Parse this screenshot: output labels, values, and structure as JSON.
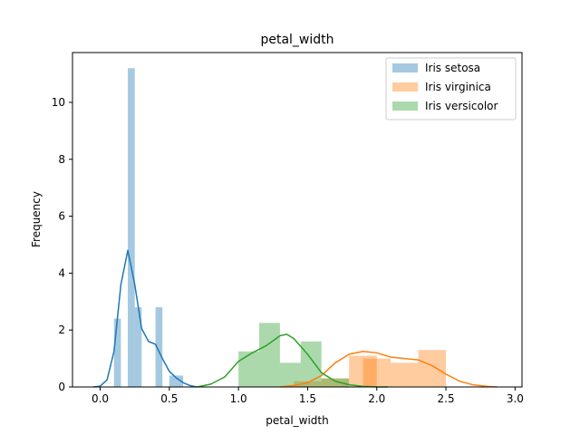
{
  "chart_data": {
    "type": "histogram",
    "title": "petal_width",
    "xlabel": "petal_width",
    "ylabel": "Frequency",
    "xlim": [
      -0.2,
      3.05
    ],
    "ylim": [
      0,
      11.75
    ],
    "xticks": [
      0.0,
      0.5,
      1.0,
      1.5,
      2.0,
      2.5,
      3.0
    ],
    "xtick_labels": [
      "0.0",
      "0.5",
      "1.0",
      "1.5",
      "2.0",
      "2.5",
      "3.0"
    ],
    "yticks": [
      0,
      2,
      4,
      6,
      8,
      10
    ],
    "ytick_labels": [
      "0",
      "2",
      "4",
      "6",
      "8",
      "10"
    ],
    "legend_position": "top-right",
    "series": [
      {
        "name": "Iris setosa",
        "color": "#1f77b4",
        "bar_alpha": 0.4,
        "bars": [
          {
            "x0": 0.1,
            "x1": 0.15,
            "height": 2.4
          },
          {
            "x0": 0.2,
            "x1": 0.25,
            "height": 11.2
          },
          {
            "x0": 0.25,
            "x1": 0.3,
            "height": 2.8
          },
          {
            "x0": 0.4,
            "x1": 0.45,
            "height": 2.8
          },
          {
            "x0": 0.5,
            "x1": 0.6,
            "height": 0.4
          }
        ],
        "kde": [
          [
            -0.05,
            0.0
          ],
          [
            0.0,
            0.03
          ],
          [
            0.05,
            0.25
          ],
          [
            0.1,
            1.25
          ],
          [
            0.15,
            3.6
          ],
          [
            0.2,
            4.8
          ],
          [
            0.25,
            3.6
          ],
          [
            0.3,
            2.05
          ],
          [
            0.35,
            1.6
          ],
          [
            0.4,
            1.5
          ],
          [
            0.45,
            1.0
          ],
          [
            0.5,
            0.55
          ],
          [
            0.55,
            0.32
          ],
          [
            0.6,
            0.15
          ],
          [
            0.65,
            0.05
          ],
          [
            0.7,
            0.0
          ]
        ]
      },
      {
        "name": "Iris virginica",
        "color": "#ff7f0e",
        "bar_alpha": 0.4,
        "bars": [
          {
            "x0": 1.4,
            "x1": 1.6,
            "height": 0.2
          },
          {
            "x0": 1.6,
            "x1": 1.8,
            "height": 0.3
          },
          {
            "x0": 1.8,
            "x1": 2.0,
            "height": 1.1
          },
          {
            "x0": 1.9,
            "x1": 2.1,
            "height": 1.0
          },
          {
            "x0": 2.1,
            "x1": 2.3,
            "height": 0.85
          },
          {
            "x0": 2.3,
            "x1": 2.5,
            "height": 1.3
          }
        ],
        "kde": [
          [
            1.3,
            0.0
          ],
          [
            1.4,
            0.05
          ],
          [
            1.5,
            0.15
          ],
          [
            1.6,
            0.4
          ],
          [
            1.7,
            0.85
          ],
          [
            1.8,
            1.15
          ],
          [
            1.9,
            1.25
          ],
          [
            2.0,
            1.2
          ],
          [
            2.1,
            1.05
          ],
          [
            2.2,
            1.0
          ],
          [
            2.3,
            0.95
          ],
          [
            2.4,
            0.75
          ],
          [
            2.5,
            0.45
          ],
          [
            2.6,
            0.2
          ],
          [
            2.7,
            0.07
          ],
          [
            2.8,
            0.02
          ],
          [
            2.87,
            0.0
          ]
        ]
      },
      {
        "name": "Iris versicolor",
        "color": "#2ca02c",
        "bar_alpha": 0.4,
        "bars": [
          {
            "x0": 1.0,
            "x1": 1.15,
            "height": 1.25
          },
          {
            "x0": 1.15,
            "x1": 1.3,
            "height": 2.25
          },
          {
            "x0": 1.3,
            "x1": 1.45,
            "height": 0.85
          },
          {
            "x0": 1.45,
            "x1": 1.6,
            "height": 1.6
          },
          {
            "x0": 1.6,
            "x1": 1.8,
            "height": 0.3
          }
        ],
        "kde": [
          [
            0.7,
            0.0
          ],
          [
            0.8,
            0.1
          ],
          [
            0.9,
            0.35
          ],
          [
            1.0,
            0.9
          ],
          [
            1.1,
            1.2
          ],
          [
            1.2,
            1.45
          ],
          [
            1.3,
            1.8
          ],
          [
            1.35,
            1.85
          ],
          [
            1.4,
            1.7
          ],
          [
            1.5,
            1.15
          ],
          [
            1.6,
            0.5
          ],
          [
            1.7,
            0.2
          ],
          [
            1.8,
            0.08
          ],
          [
            1.9,
            0.02
          ],
          [
            2.0,
            0.0
          ],
          [
            2.08,
            0.0
          ]
        ]
      }
    ]
  }
}
